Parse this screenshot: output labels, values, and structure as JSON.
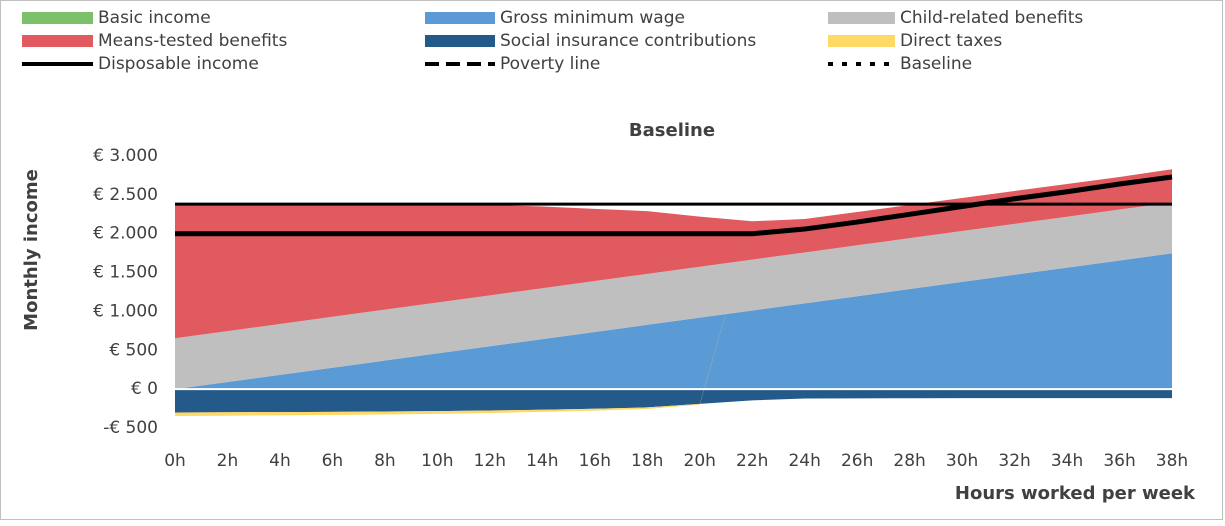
{
  "chart_data": {
    "type": "stacked-area",
    "title": "Baseline",
    "y_label": "Monthly income",
    "x_label": "Hours worked per week",
    "categories": [
      "0h",
      "2h",
      "4h",
      "6h",
      "8h",
      "10h",
      "12h",
      "14h",
      "16h",
      "18h",
      "20h",
      "22h",
      "24h",
      "26h",
      "28h",
      "30h",
      "32h",
      "34h",
      "36h",
      "38h"
    ],
    "ylim": [
      -500,
      3000
    ],
    "yticks": [
      {
        "value": -500,
        "label": "-€ 500"
      },
      {
        "value": 0,
        "label": "€ 0"
      },
      {
        "value": 500,
        "label": "€ 500"
      },
      {
        "value": 1000,
        "label": "€ 1.000"
      },
      {
        "value": 1500,
        "label": "€ 1.500"
      },
      {
        "value": 2000,
        "label": "€ 2.000"
      },
      {
        "value": 2500,
        "label": "€ 2.500"
      },
      {
        "value": 3000,
        "label": "€ 3.000"
      }
    ],
    "grid": false,
    "series": [
      {
        "name": "Basic income",
        "color": "#7cc06a",
        "kind": "area",
        "values": [
          0,
          0,
          0,
          0,
          0,
          0,
          0,
          0,
          0,
          0,
          0,
          0,
          0,
          0,
          0,
          0,
          0,
          0,
          0,
          0
        ]
      },
      {
        "name": "Gross minimum wage",
        "color": "#5b9bd5",
        "kind": "area",
        "values": [
          0,
          92,
          184,
          276,
          368,
          460,
          552,
          644,
          736,
          828,
          920,
          1012,
          1104,
          1196,
          1288,
          1380,
          1472,
          1564,
          1656,
          1748
        ]
      },
      {
        "name": "Child-related benefits",
        "color": "#bfbfbf",
        "kind": "area",
        "values": [
          655,
          655,
          655,
          655,
          655,
          655,
          655,
          655,
          655,
          655,
          655,
          655,
          655,
          655,
          655,
          655,
          655,
          655,
          655,
          655
        ]
      },
      {
        "name": "Means-tested benefits",
        "color": "#e05a5f",
        "kind": "area",
        "values": [
          1715,
          1623,
          1531,
          1439,
          1347,
          1255,
          1163,
          1051,
          929,
          807,
          645,
          493,
          431,
          429,
          427,
          425,
          423,
          421,
          419,
          427
        ]
      },
      {
        "name": "Social insurance contributions",
        "color": "#245a8a",
        "kind": "area",
        "values": [
          -300,
          -298,
          -295,
          -292,
          -288,
          -283,
          -275,
          -265,
          -252,
          -235,
          -190,
          -145,
          -120,
          -118,
          -117,
          -116,
          -115,
          -115,
          -115,
          -115
        ]
      },
      {
        "name": "Direct taxes",
        "color": "#ffd966",
        "kind": "area",
        "values": [
          -45,
          -44,
          -42,
          -40,
          -38,
          -35,
          -32,
          -28,
          -25,
          -20,
          -10,
          0,
          0,
          0,
          0,
          0,
          0,
          0,
          0,
          0
        ]
      },
      {
        "name": "Disposable income",
        "color": "#000000",
        "kind": "line",
        "dash": "solid",
        "values": [
          2000,
          2000,
          2000,
          2000,
          2000,
          2000,
          2000,
          2000,
          2000,
          2000,
          2000,
          2000,
          2060,
          2150,
          2250,
          2350,
          2450,
          2540,
          2640,
          2730
        ]
      },
      {
        "name": "Poverty line",
        "color": "#000000",
        "kind": "line",
        "dash": "dashed",
        "values": [
          2380,
          2380,
          2380,
          2380,
          2380,
          2380,
          2380,
          2380,
          2380,
          2380,
          2380,
          2380,
          2380,
          2380,
          2380,
          2380,
          2380,
          2380,
          2380,
          2380
        ]
      },
      {
        "name": "Baseline",
        "color": "#000000",
        "kind": "legend-only",
        "dash": "dotted"
      }
    ]
  }
}
